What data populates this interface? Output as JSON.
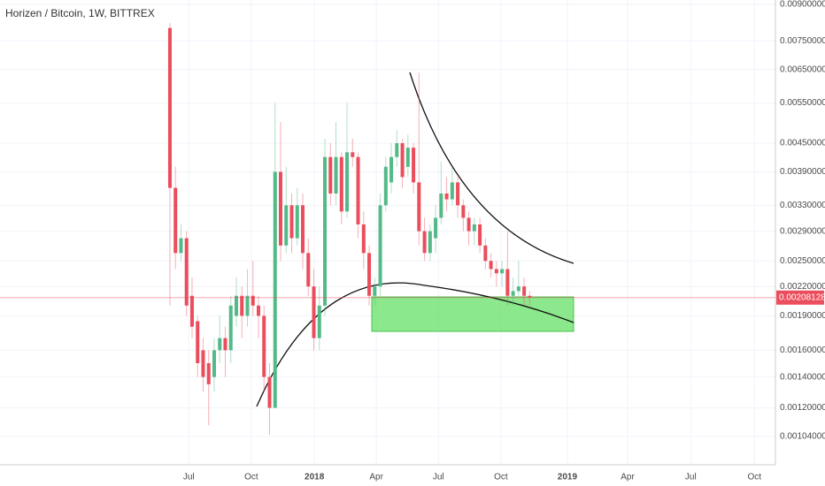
{
  "chart_data": {
    "type": "candlestick",
    "title": "Horizen / Bitcoin, 1W, BITTREX",
    "log_scale": true,
    "grid": true,
    "up_color": "#53b987",
    "down_color": "#eb4d5c",
    "x": [
      0,
      1,
      2,
      3,
      4,
      5,
      6,
      7,
      8,
      9,
      10,
      11,
      12,
      13,
      14,
      15,
      16,
      17,
      18,
      19,
      20,
      21,
      22,
      23,
      24,
      25,
      26,
      27,
      28,
      29,
      30,
      31,
      32,
      33,
      34,
      35,
      36,
      37,
      38,
      39,
      40,
      41,
      42,
      43,
      44,
      45,
      46,
      47,
      48,
      49,
      50,
      51,
      52,
      53,
      54,
      55,
      56,
      57,
      58,
      59,
      60,
      61,
      62,
      63,
      64,
      65
    ],
    "open": [
      0.008,
      0.0036,
      0.0026,
      0.0028,
      0.0021,
      0.00185,
      0.0016,
      0.0015,
      0.0014,
      0.0016,
      0.0017,
      0.0016,
      0.0019,
      0.0021,
      0.0019,
      0.0021,
      0.002,
      0.0019,
      0.0014,
      0.0012,
      0.0039,
      0.0027,
      0.0033,
      0.0028,
      0.0033,
      0.0026,
      0.0022,
      0.0017,
      0.002,
      0.0042,
      0.0035,
      0.0042,
      0.0032,
      0.0043,
      0.0042,
      0.003,
      0.0026,
      0.0021,
      0.0022,
      0.0033,
      0.0037,
      0.0042,
      0.0045,
      0.004,
      0.0044,
      0.0037,
      0.0029,
      0.0026,
      0.0028,
      0.0031,
      0.0035,
      0.0034,
      0.0037,
      0.0033,
      0.0031,
      0.0029,
      0.003,
      0.0027,
      0.0025,
      0.0024,
      0.00235,
      0.0024,
      0.0021,
      0.00215,
      0.0022,
      0.0021
    ],
    "high": [
      0.0082,
      0.004,
      0.003,
      0.0029,
      0.0023,
      0.0019,
      0.0017,
      0.0016,
      0.0017,
      0.0019,
      0.0018,
      0.0021,
      0.0023,
      0.0022,
      0.0024,
      0.0025,
      0.0021,
      0.002,
      0.0015,
      0.0055,
      0.005,
      0.004,
      0.0035,
      0.0036,
      0.0035,
      0.0028,
      0.0024,
      0.0022,
      0.0046,
      0.0045,
      0.005,
      0.0043,
      0.0055,
      0.0046,
      0.0043,
      0.0032,
      0.0027,
      0.0023,
      0.0035,
      0.0042,
      0.0045,
      0.0048,
      0.0046,
      0.0047,
      0.0045,
      0.0064,
      0.0031,
      0.003,
      0.0033,
      0.0041,
      0.0038,
      0.004,
      0.0038,
      0.0034,
      0.0032,
      0.0031,
      0.0031,
      0.0028,
      0.0026,
      0.0025,
      0.0025,
      0.0029,
      0.0023,
      0.0025,
      0.0023,
      0.00215
    ],
    "low": [
      0.002,
      0.0024,
      0.0025,
      0.0019,
      0.0017,
      0.0014,
      0.0013,
      0.0011,
      0.0013,
      0.0015,
      0.0014,
      0.0015,
      0.0018,
      0.0017,
      0.0018,
      0.0019,
      0.0017,
      0.0013,
      0.00105,
      0.0012,
      0.0025,
      0.0026,
      0.0026,
      0.0027,
      0.0024,
      0.0021,
      0.0016,
      0.0016,
      0.0019,
      0.0033,
      0.0033,
      0.003,
      0.0031,
      0.004,
      0.0028,
      0.0024,
      0.002,
      0.002,
      0.0021,
      0.0032,
      0.0035,
      0.004,
      0.0036,
      0.0038,
      0.0035,
      0.0027,
      0.0025,
      0.0025,
      0.0026,
      0.003,
      0.0032,
      0.0033,
      0.0031,
      0.0029,
      0.0027,
      0.0027,
      0.0026,
      0.0024,
      0.0023,
      0.0022,
      0.0022,
      0.002,
      0.002,
      0.0021,
      0.002,
      0.002
    ],
    "close": [
      0.0036,
      0.0026,
      0.0028,
      0.002,
      0.0018,
      0.0015,
      0.0014,
      0.00135,
      0.0016,
      0.0017,
      0.0016,
      0.002,
      0.0021,
      0.0019,
      0.0021,
      0.002,
      0.0019,
      0.0014,
      0.0012,
      0.0039,
      0.0027,
      0.0033,
      0.0028,
      0.0033,
      0.0026,
      0.0022,
      0.0017,
      0.002,
      0.0042,
      0.0035,
      0.0042,
      0.0032,
      0.0043,
      0.0042,
      0.003,
      0.0026,
      0.0021,
      0.0022,
      0.0033,
      0.004,
      0.0042,
      0.0045,
      0.0038,
      0.0044,
      0.0037,
      0.0029,
      0.0026,
      0.0029,
      0.0031,
      0.0035,
      0.0034,
      0.0037,
      0.0033,
      0.0031,
      0.0029,
      0.003,
      0.0027,
      0.0025,
      0.0024,
      0.00235,
      0.0024,
      0.0021,
      0.00215,
      0.0022,
      0.0021,
      0.00208128
    ],
    "last_price": {
      "value": 0.00208128,
      "label": "0.00208128"
    },
    "xlim": [
      -30.7,
      109.4
    ],
    "xticks": [
      {
        "value": 3.4,
        "label": "Jul"
      },
      {
        "value": 14.7,
        "label": "Oct"
      },
      {
        "value": 26.1,
        "label": "2018"
      },
      {
        "value": 37.3,
        "label": "Apr"
      },
      {
        "value": 48.5,
        "label": "Jul"
      },
      {
        "value": 59.8,
        "label": "Oct"
      },
      {
        "value": 71.8,
        "label": "2019"
      },
      {
        "value": 82.7,
        "label": "Apr"
      },
      {
        "value": 94.1,
        "label": "Jul"
      },
      {
        "value": 105.6,
        "label": "Oct"
      }
    ],
    "ylim": [
      0.000903,
      0.0092
    ],
    "yticks": [
      {
        "value": 0.009,
        "label": "0.00900000"
      },
      {
        "value": 0.0075,
        "label": "0.00750000"
      },
      {
        "value": 0.0065,
        "label": "0.00650000"
      },
      {
        "value": 0.0055,
        "label": "0.00550000"
      },
      {
        "value": 0.0045,
        "label": "0.00450000"
      },
      {
        "value": 0.0039,
        "label": "0.00390000"
      },
      {
        "value": 0.0033,
        "label": "0.00330000"
      },
      {
        "value": 0.0029,
        "label": "0.00290000"
      },
      {
        "value": 0.0025,
        "label": "0.00250000"
      },
      {
        "value": 0.0022,
        "label": "0.00220000"
      },
      {
        "value": 0.0019,
        "label": "0.00190000"
      },
      {
        "value": 0.0016,
        "label": "0.00160000"
      },
      {
        "value": 0.0014,
        "label": "0.00140000"
      },
      {
        "value": 0.0012,
        "label": "0.00120000"
      },
      {
        "value": 0.00104,
        "label": "0.00104000"
      }
    ]
  }
}
